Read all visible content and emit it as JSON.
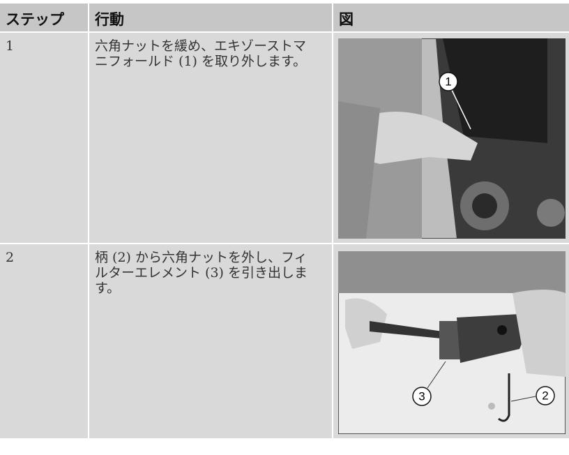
{
  "table": {
    "headers": [
      "ステップ",
      "行動",
      "図"
    ],
    "rows": [
      {
        "step": "1",
        "action": "六角ナットを緩め、エキゾーストマニフォールド (1) を取り外します。",
        "callouts": [
          "1"
        ]
      },
      {
        "step": "2",
        "action": "柄 (2) から六角ナットを外し、フィルターエレメント (3) を引き出します。",
        "callouts": [
          "3",
          "2"
        ]
      }
    ]
  }
}
